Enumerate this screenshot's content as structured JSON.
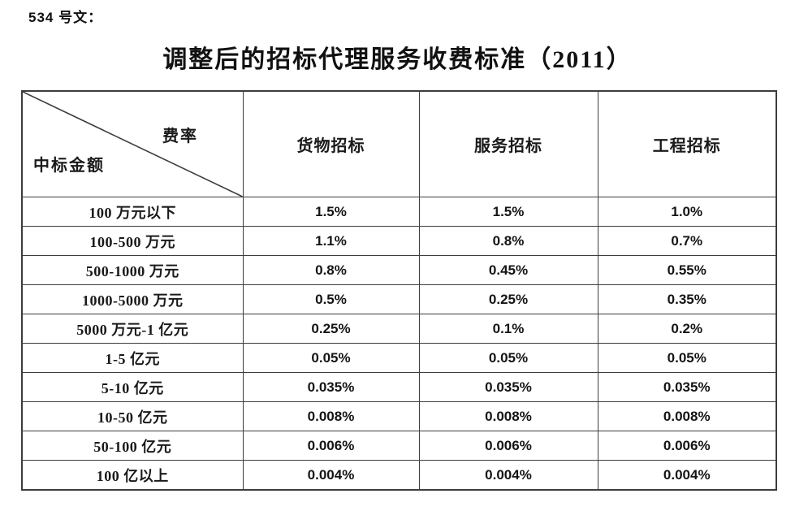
{
  "doc": {
    "label": "534 号文：",
    "title": "调整后的招标代理服务收费标准（2011）"
  },
  "table": {
    "corner": {
      "top_right": "费率",
      "bottom_left": "中标金额"
    },
    "columns": [
      "货物招标",
      "服务招标",
      "工程招标"
    ],
    "rows": [
      {
        "label": "100 万元以下",
        "values": [
          "1.5%",
          "1.5%",
          "1.0%"
        ]
      },
      {
        "label": "100-500 万元",
        "values": [
          "1.1%",
          "0.8%",
          "0.7%"
        ]
      },
      {
        "label": "500-1000 万元",
        "values": [
          "0.8%",
          "0.45%",
          "0.55%"
        ]
      },
      {
        "label": "1000-5000 万元",
        "values": [
          "0.5%",
          "0.25%",
          "0.35%"
        ]
      },
      {
        "label": "5000 万元-1 亿元",
        "values": [
          "0.25%",
          "0.1%",
          "0.2%"
        ]
      },
      {
        "label": "1-5 亿元",
        "values": [
          "0.05%",
          "0.05%",
          "0.05%"
        ]
      },
      {
        "label": "5-10 亿元",
        "values": [
          "0.035%",
          "0.035%",
          "0.035%"
        ]
      },
      {
        "label": "10-50 亿元",
        "values": [
          "0.008%",
          "0.008%",
          "0.008%"
        ]
      },
      {
        "label": "50-100 亿元",
        "values": [
          "0.006%",
          "0.006%",
          "0.006%"
        ]
      },
      {
        "label": "100 亿以上",
        "values": [
          "0.004%",
          "0.004%",
          "0.004%"
        ]
      }
    ],
    "colors": {
      "text": "#1a1a1a",
      "border": "#3d3d3d",
      "background": "#ffffff"
    }
  }
}
